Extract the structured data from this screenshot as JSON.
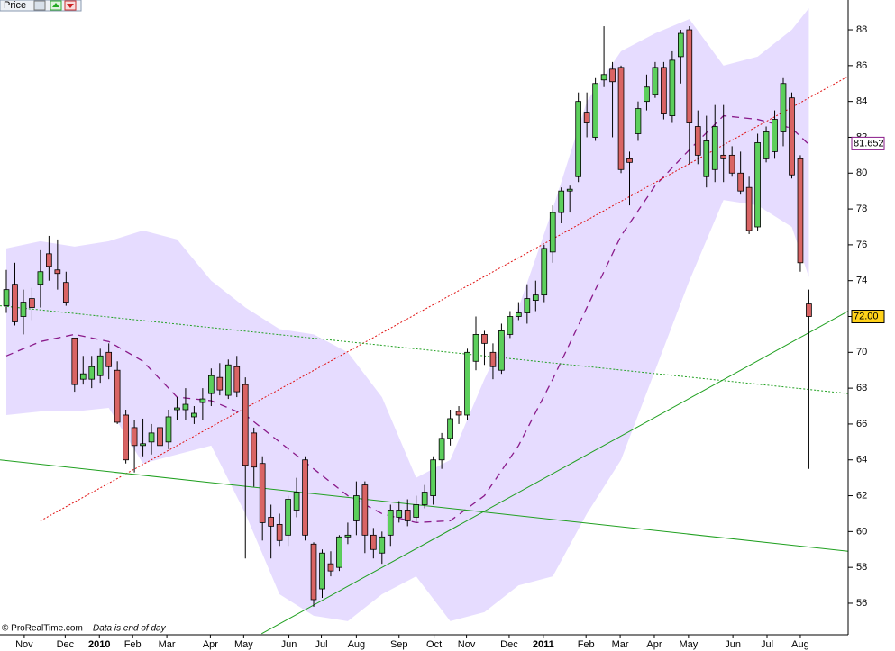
{
  "chart_data": {
    "type": "candlestick",
    "header": "Price",
    "footer": {
      "source": "© ProRealTime.com",
      "note": "Data is end of day"
    },
    "xlim": [
      -0.74,
      98.6
    ],
    "xticks": [
      {
        "value": 2.1,
        "label": "Nov"
      },
      {
        "value": 6.9,
        "label": "Dec"
      },
      {
        "value": 10.9,
        "label": "2010"
      },
      {
        "value": 14.8,
        "label": "Feb"
      },
      {
        "value": 18.8,
        "label": "Mar"
      },
      {
        "value": 23.9,
        "label": "Apr"
      },
      {
        "value": 27.8,
        "label": "May"
      },
      {
        "value": 33.1,
        "label": "Jun"
      },
      {
        "value": 36.9,
        "label": "Jul"
      },
      {
        "value": 41,
        "label": "Aug"
      },
      {
        "value": 46,
        "label": "Sep"
      },
      {
        "value": 50.1,
        "label": "Oct"
      },
      {
        "value": 53.9,
        "label": "Nov"
      },
      {
        "value": 58.9,
        "label": "Dec"
      },
      {
        "value": 62.9,
        "label": "2011"
      },
      {
        "value": 67.9,
        "label": "Feb"
      },
      {
        "value": 71.9,
        "label": "Mar"
      },
      {
        "value": 75.9,
        "label": "Apr"
      },
      {
        "value": 79.9,
        "label": "May"
      },
      {
        "value": 85.1,
        "label": "Jun"
      },
      {
        "value": 89.1,
        "label": "Jul"
      },
      {
        "value": 93,
        "label": "Aug"
      }
    ],
    "ylim": [
      54.24,
      89.66
    ],
    "yticks": [
      56,
      58,
      60,
      62,
      64,
      66,
      68,
      70,
      72,
      74,
      76,
      78,
      80,
      82,
      84,
      86,
      88
    ],
    "up_color": "#5ccf5c",
    "down_color": "#d96464",
    "open": [
      72.6,
      73.8,
      72.0,
      73.0,
      73.8,
      75.5,
      74.6,
      73.9,
      70.8,
      68.5,
      68.5,
      68.7,
      70.0,
      69.0,
      66.5,
      65.8,
      64.8,
      65.0,
      65.8,
      65.0,
      66.8,
      66.8,
      66.4,
      67.2,
      67.7,
      68.6,
      67.6,
      69.2,
      68.2,
      65.5,
      63.8,
      60.8,
      60.4,
      59.8,
      61.2,
      64.0,
      59.3,
      56.8,
      58.2,
      58.0,
      59.7,
      60.6,
      62.6,
      59.8,
      58.8,
      59.8,
      60.8,
      61.2,
      60.8,
      61.5,
      62.0,
      64.0,
      65.2,
      66.7,
      66.5,
      69.5,
      71.0,
      70.0,
      69.0,
      71.0,
      72.0,
      72.2,
      72.9,
      73.2,
      75.6,
      77.8,
      79.0,
      79.8,
      83.4,
      82.0,
      85.2,
      85.8,
      85.9,
      80.8,
      82.2,
      84.0,
      84.4,
      85.9,
      83.2,
      86.5,
      88.0,
      82.6,
      79.8,
      80.2,
      81.0,
      81.0,
      80.0,
      79.2,
      77.0,
      80.8,
      81.2,
      82.3,
      84.2,
      80.8,
      72.7
    ],
    "high": [
      74.6,
      75.0,
      73.5,
      73.6,
      75.7,
      76.5,
      76.3,
      74.5,
      70.8,
      69.8,
      69.8,
      70.2,
      70.5,
      69.5,
      66.8,
      66.2,
      66.3,
      66.0,
      66.3,
      66.8,
      67.5,
      68.0,
      67.0,
      68.0,
      69.1,
      69.4,
      69.6,
      69.8,
      68.6,
      65.8,
      64.2,
      61.5,
      61.0,
      62.0,
      63.0,
      64.2,
      59.4,
      59.0,
      58.9,
      59.8,
      60.5,
      62.8,
      62.8,
      60.2,
      60.0,
      61.5,
      61.7,
      61.8,
      62.0,
      62.6,
      64.2,
      65.5,
      66.8,
      67.0,
      70.2,
      72.0,
      71.2,
      70.5,
      71.6,
      72.3,
      72.8,
      73.8,
      74.0,
      76.0,
      78.2,
      79.2,
      79.3,
      84.5,
      84.5,
      85.3,
      88.2,
      86.2,
      86.0,
      81.2,
      84.0,
      85.5,
      86.2,
      86.2,
      86.8,
      88.0,
      88.2,
      83.5,
      83.2,
      83.8,
      83.8,
      81.5,
      81.2,
      79.8,
      82.2,
      82.6,
      83.5,
      85.3,
      84.5,
      81.0,
      73.5
    ],
    "low": [
      72.2,
      71.5,
      71.0,
      71.8,
      72.5,
      74.0,
      73.5,
      72.6,
      67.8,
      68.2,
      68.0,
      68.3,
      68.5,
      66.0,
      63.8,
      63.3,
      64.2,
      64.3,
      64.3,
      64.6,
      66.2,
      66.2,
      66.0,
      66.2,
      67.0,
      67.6,
      67.4,
      67.5,
      58.5,
      62.5,
      59.5,
      58.5,
      59.2,
      59.2,
      60.8,
      59.5,
      55.8,
      56.3,
      57.5,
      57.8,
      59.3,
      59.8,
      58.8,
      58.5,
      58.2,
      59.2,
      60.5,
      60.3,
      60.5,
      61.3,
      61.5,
      63.5,
      64.8,
      66.0,
      66.2,
      69.0,
      69.3,
      68.5,
      68.8,
      70.8,
      71.8,
      71.6,
      72.3,
      72.8,
      75.0,
      77.2,
      77.8,
      79.5,
      82.0,
      81.8,
      84.8,
      82.0,
      80.0,
      78.2,
      81.8,
      83.5,
      84.2,
      83.0,
      82.8,
      85.0,
      80.5,
      80.5,
      79.2,
      79.5,
      79.5,
      79.8,
      78.8,
      76.6,
      76.8,
      80.6,
      80.8,
      81.5,
      79.7,
      74.5,
      63.5
    ],
    "close": [
      73.5,
      71.7,
      72.8,
      72.5,
      74.5,
      74.8,
      74.4,
      72.8,
      68.2,
      68.8,
      69.2,
      69.8,
      69.2,
      66.1,
      64.0,
      64.8,
      64.9,
      65.5,
      64.8,
      66.4,
      66.9,
      67.1,
      66.6,
      67.4,
      68.7,
      67.9,
      69.3,
      67.8,
      63.7,
      63.6,
      60.5,
      60.3,
      59.5,
      61.8,
      62.2,
      59.8,
      56.2,
      58.8,
      57.8,
      59.7,
      59.8,
      62.0,
      59.8,
      59.0,
      59.7,
      61.2,
      61.2,
      60.6,
      61.5,
      62.2,
      64.0,
      65.2,
      66.3,
      66.5,
      70.0,
      71.0,
      70.5,
      69.2,
      71.2,
      72.0,
      72.2,
      73.0,
      73.2,
      75.8,
      77.8,
      79.0,
      79.1,
      84.0,
      82.8,
      85.0,
      85.5,
      85.1,
      80.2,
      80.6,
      83.6,
      84.8,
      85.9,
      83.3,
      86.3,
      87.8,
      82.8,
      81.0,
      81.8,
      82.6,
      80.8,
      80.0,
      79.0,
      76.8,
      81.7,
      82.3,
      83.0,
      85.0,
      79.9,
      75.0,
      72.0
    ],
    "band": {
      "fill": "#e6dcff",
      "middle_color": "#8a1a8a",
      "x": [
        0,
        4,
        8,
        12,
        16,
        20,
        24,
        28,
        32,
        36,
        40,
        44,
        48,
        52,
        56,
        60,
        64,
        68,
        72,
        76,
        80,
        84,
        88,
        92,
        94
      ],
      "upper": [
        75.8,
        76.2,
        75.9,
        76.2,
        76.8,
        76.3,
        74.0,
        72.5,
        71.3,
        71.0,
        70.0,
        67.5,
        63.0,
        64.0,
        68.5,
        72.5,
        78.0,
        84.0,
        86.8,
        87.8,
        88.6,
        86.0,
        86.5,
        88.0,
        89.2
      ],
      "lower": [
        66.5,
        66.7,
        66.7,
        66.9,
        63.8,
        64.3,
        64.8,
        61.0,
        56.5,
        55.3,
        55.0,
        56.5,
        57.5,
        55.0,
        55.5,
        57.0,
        57.5,
        61.0,
        64.0,
        69.0,
        74.0,
        78.5,
        78.2,
        77.0,
        74.2
      ],
      "middle": [
        69.8,
        70.6,
        71.0,
        70.6,
        69.5,
        67.5,
        67.3,
        66.5,
        65.0,
        63.5,
        62.0,
        61.0,
        60.5,
        60.6,
        62.0,
        64.8,
        68.5,
        72.5,
        76.5,
        79.3,
        81.3,
        83.2,
        83.0,
        82.5,
        81.6
      ]
    },
    "trendlines": [
      {
        "color": "#e01010",
        "style": "dotted",
        "x": [
          4,
          98.6
        ],
        "y": [
          60.6,
          85.4
        ]
      },
      {
        "color": "#20a020",
        "style": "dotted",
        "x": [
          -0.74,
          98.6
        ],
        "y": [
          72.6,
          67.7
        ]
      },
      {
        "color": "#20a020",
        "style": "solid",
        "x": [
          -0.74,
          98.6
        ],
        "y": [
          64.0,
          58.9
        ]
      },
      {
        "color": "#20a020",
        "style": "solid",
        "x": [
          29.9,
          98.6
        ],
        "y": [
          54.3,
          72.3
        ]
      }
    ],
    "last_labels": [
      {
        "value": 81.652,
        "label": "81.652",
        "color": "#8a1a8a",
        "background": "#ffffff"
      },
      {
        "value": 72,
        "label": "72.00",
        "color": "#000000",
        "background": "#ffd21a"
      }
    ]
  }
}
